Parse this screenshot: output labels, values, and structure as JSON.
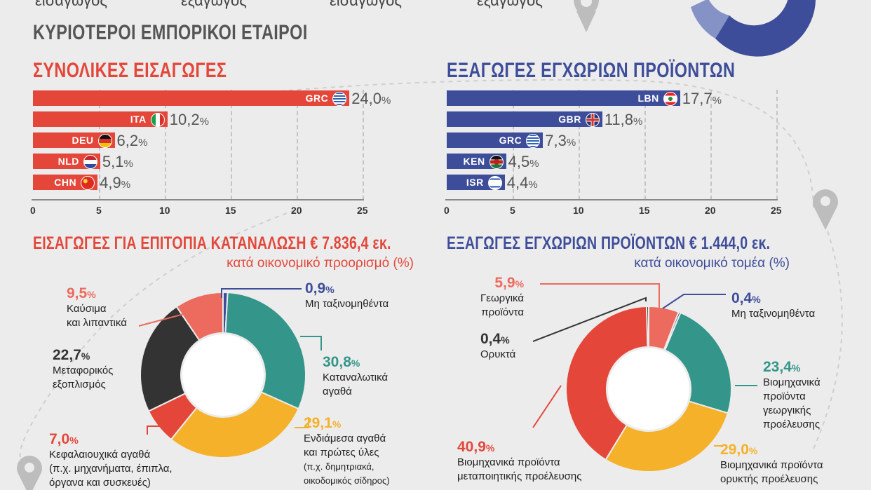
{
  "header_fragments": [
    "εισαγωγος",
    "εξαγωγος",
    "εισαγωγος",
    "εξαγωγος"
  ],
  "title": "ΚΥΡΙΟΤΕΡΟΙ ΕΜΠΟΡΙΚΟΙ ΕΤΑΙΡΟΙ",
  "colors": {
    "red": "#e4473a",
    "blue": "#3e4d9a",
    "teal": "#34958a",
    "yellow": "#f5b12a",
    "dark": "#333333",
    "salmon": "#ec6a5e"
  },
  "imports_partners": {
    "heading": "ΣΥΝΟΛΙΚΕΣ ΕΙΣΑΓΩΓΕΣ",
    "pct_sign": "%",
    "ticks": [
      "0",
      "5",
      "10",
      "15",
      "20",
      "25"
    ],
    "bars": [
      {
        "code": "GRC",
        "value": 24.0,
        "label": "24,0",
        "flag": "greece-flag-icon"
      },
      {
        "code": "ITA",
        "value": 10.2,
        "label": "10,2",
        "flag": "italy-flag-icon"
      },
      {
        "code": "DEU",
        "value": 6.2,
        "label": "6,2",
        "flag": "germany-flag-icon"
      },
      {
        "code": "NLD",
        "value": 5.1,
        "label": "5,1",
        "flag": "netherlands-flag-icon"
      },
      {
        "code": "CHN",
        "value": 4.9,
        "label": "4,9",
        "flag": "china-flag-icon"
      }
    ]
  },
  "exports_partners": {
    "heading": "ΕΞΑΓΩΓΕΣ ΕΓΧΩΡΙΩΝ ΠΡΟΪΟΝΤΩΝ",
    "pct_sign": "%",
    "ticks": [
      "0",
      "5",
      "10",
      "15",
      "20",
      "25"
    ],
    "bars": [
      {
        "code": "LBN",
        "value": 17.7,
        "label": "17,7",
        "flag": "lebanon-flag-icon"
      },
      {
        "code": "GBR",
        "value": 11.8,
        "label": "11,8",
        "flag": "uk-flag-icon"
      },
      {
        "code": "GRC",
        "value": 7.3,
        "label": "7,3",
        "flag": "greece-flag-icon"
      },
      {
        "code": "KEN",
        "value": 4.5,
        "label": "4,5",
        "flag": "kenya-flag-icon"
      },
      {
        "code": "ISR",
        "value": 4.4,
        "label": "4,4",
        "flag": "israel-flag-icon"
      }
    ]
  },
  "imports_pie": {
    "heading": "ΕΙΣΑΓΩΓΕΣ ΓΙΑ ΕΠΙΤΟΠΙΑ ΚΑΤΑΝΑΛΩΣΗ € 7.836,4 εκ.",
    "subheading": "κατά οικονομικό προορισμό (%)",
    "slices": [
      {
        "value": 0.9,
        "pct": "0,9",
        "label_lines": [
          "Μη ταξινομηθέντα"
        ]
      },
      {
        "value": 30.8,
        "pct": "30,8",
        "label_lines": [
          "Καταναλωτικά",
          "αγαθά"
        ]
      },
      {
        "value": 29.1,
        "pct": "29,1",
        "label_lines": [
          "Ενδιάμεσα αγαθά",
          "και πρώτες ύλες",
          "(π.χ. δημητριακά,",
          "οικοδομικός σίδηρος)"
        ]
      },
      {
        "value": 7.0,
        "pct": "7,0",
        "label_lines": [
          "Κεφαλαιουχικά αγαθά",
          "(π.χ. μηχανήματα, έπιπλα,",
          "όργανα και συσκευές)"
        ]
      },
      {
        "value": 22.7,
        "pct": "22,7",
        "label_lines": [
          "Μεταφορικός",
          "εξοπλισμός"
        ]
      },
      {
        "value": 9.5,
        "pct": "9,5",
        "label_lines": [
          "Καύσιμα",
          "και λιπαντικά"
        ]
      }
    ]
  },
  "exports_pie": {
    "heading": "ΕΞΑΓΩΓΕΣ ΕΓΧΩΡΙΩΝ ΠΡΟΪΟΝΤΩΝ € 1.444,0 εκ.",
    "subheading": "κατά οικονομικό τομέα (%)",
    "slices": [
      {
        "value": 5.9,
        "pct": "5,9",
        "label_lines": [
          "Γεωργικά",
          "προϊόντα"
        ]
      },
      {
        "value": 0.4,
        "pct": "0,4",
        "label_lines": [
          "Μη ταξινομηθέντα"
        ]
      },
      {
        "value": 23.4,
        "pct": "23,4",
        "label_lines": [
          "Βιομηχανικά",
          "προϊόντα",
          "γεωργικής",
          "προέλευσης"
        ]
      },
      {
        "value": 29.0,
        "pct": "29,0",
        "label_lines": [
          "Βιομηχανικά προϊόντα",
          "ορυκτής προέλευσης"
        ]
      },
      {
        "value": 40.9,
        "pct": "40,9",
        "label_lines": [
          "Βιομηχανικά προϊόντα",
          "μεταποιητικής προέλευσης"
        ]
      },
      {
        "value": 0.4,
        "pct": "0,4",
        "label_lines": [
          "Ορυκτά"
        ]
      }
    ]
  }
}
